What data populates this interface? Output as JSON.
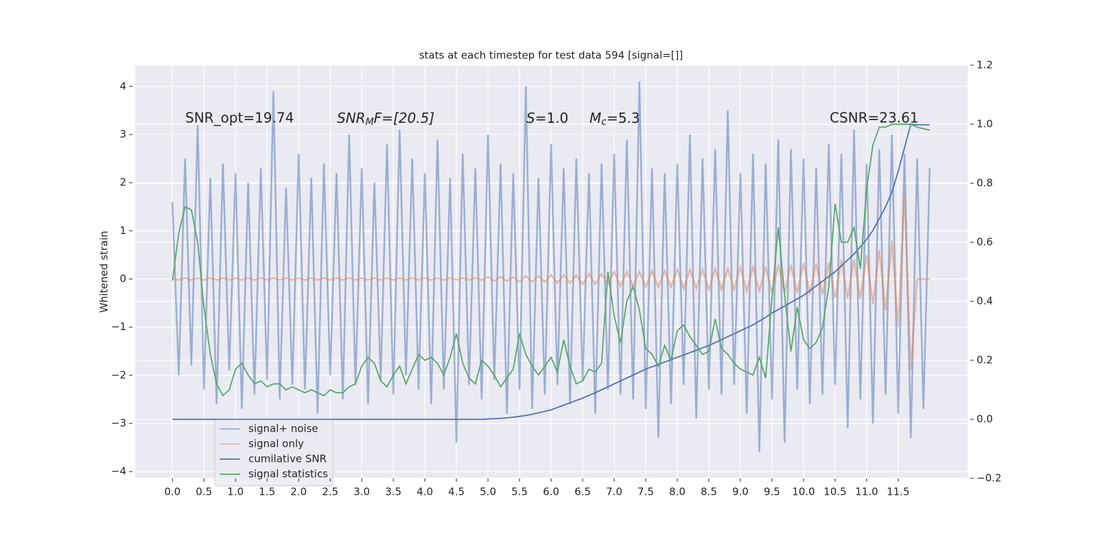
{
  "chart_data": {
    "type": "line",
    "title": "stats at each timestep for test data 594 [signal=[]]",
    "ylabel": "Whitened strain",
    "x": [
      0.0,
      0.1,
      0.2,
      0.3,
      0.4,
      0.5,
      0.6,
      0.7,
      0.8,
      0.9,
      1.0,
      1.1,
      1.2,
      1.3,
      1.4,
      1.5,
      1.6,
      1.7,
      1.8,
      1.9,
      2.0,
      2.1,
      2.2,
      2.3,
      2.4,
      2.5,
      2.6,
      2.7,
      2.8,
      2.9,
      3.0,
      3.1,
      3.2,
      3.3,
      3.4,
      3.5,
      3.6,
      3.7,
      3.8,
      3.9,
      4.0,
      4.1,
      4.2,
      4.3,
      4.4,
      4.5,
      4.6,
      4.7,
      4.8,
      4.9,
      5.0,
      5.1,
      5.2,
      5.3,
      5.4,
      5.5,
      5.6,
      5.7,
      5.8,
      5.9,
      6.0,
      6.1,
      6.2,
      6.3,
      6.4,
      6.5,
      6.6,
      6.7,
      6.8,
      6.9,
      7.0,
      7.1,
      7.2,
      7.3,
      7.4,
      7.5,
      7.6,
      7.7,
      7.8,
      7.9,
      8.0,
      8.1,
      8.2,
      8.3,
      8.4,
      8.5,
      8.6,
      8.7,
      8.8,
      8.9,
      9.0,
      9.1,
      9.2,
      9.3,
      9.4,
      9.5,
      9.6,
      9.7,
      9.8,
      9.9,
      10.0,
      10.1,
      10.2,
      10.3,
      10.4,
      10.5,
      10.6,
      10.7,
      10.8,
      10.9,
      11.0,
      11.1,
      11.2,
      11.3,
      11.4,
      11.5,
      11.6,
      11.7,
      11.8,
      11.9,
      12.0
    ],
    "xlim": [
      -0.59,
      12.6
    ],
    "xticks": [
      {
        "value": 0,
        "label": "0.0"
      },
      {
        "value": 0.5,
        "label": "0.5"
      },
      {
        "value": 1,
        "label": "1.0"
      },
      {
        "value": 1.5,
        "label": "1.5"
      },
      {
        "value": 2,
        "label": "2.0"
      },
      {
        "value": 2.5,
        "label": "2.5"
      },
      {
        "value": 3,
        "label": "3.0"
      },
      {
        "value": 3.5,
        "label": "3.5"
      },
      {
        "value": 4,
        "label": "4.0"
      },
      {
        "value": 4.5,
        "label": "4.5"
      },
      {
        "value": 5,
        "label": "5.0"
      },
      {
        "value": 5.5,
        "label": "5.5"
      },
      {
        "value": 6,
        "label": "6.0"
      },
      {
        "value": 6.5,
        "label": "6.5"
      },
      {
        "value": 7,
        "label": "7.0"
      },
      {
        "value": 7.5,
        "label": "7.5"
      },
      {
        "value": 8,
        "label": "8.0"
      },
      {
        "value": 8.5,
        "label": "8.5"
      },
      {
        "value": 9,
        "label": "9.0"
      },
      {
        "value": 9.5,
        "label": "9.5"
      },
      {
        "value": 10,
        "label": "10.0"
      },
      {
        "value": 10.5,
        "label": "10.5"
      },
      {
        "value": 11,
        "label": "11.0"
      },
      {
        "value": 11.5,
        "label": "11.5"
      }
    ],
    "ylim": [
      -4.14,
      4.44
    ],
    "yticks": [
      {
        "value": -4,
        "label": "−4"
      },
      {
        "value": -3,
        "label": "−3"
      },
      {
        "value": -2,
        "label": "−2"
      },
      {
        "value": -1,
        "label": "−1"
      },
      0,
      1,
      2,
      3,
      4
    ],
    "y2lim": [
      -0.2,
      1.2
    ],
    "y2ticks": [
      {
        "value": -0.2,
        "label": "−0.2"
      },
      {
        "value": 0,
        "label": "0.0"
      },
      0.2,
      0.4,
      0.6,
      0.8,
      {
        "value": 1,
        "label": "1.0"
      },
      1.2
    ],
    "grid": true,
    "legend": "lower left",
    "series": [
      {
        "name": "signal+ noise",
        "color": "#4c72b0",
        "alpha": 0.5,
        "values": [
          1.6,
          -2.0,
          2.5,
          -1.8,
          3.2,
          -2.3,
          2.1,
          -2.6,
          2.4,
          -1.9,
          2.2,
          -2.7,
          2.0,
          -2.4,
          2.3,
          -2.1,
          3.9,
          -2.5,
          1.9,
          -2.2,
          2.6,
          -2.3,
          2.1,
          -2.8,
          2.4,
          -2.0,
          2.2,
          -2.5,
          3.0,
          -2.2,
          2.3,
          -2.6,
          2.0,
          -2.1,
          2.8,
          -2.4,
          3.1,
          -2.0,
          2.5,
          -2.3,
          2.2,
          -2.6,
          2.9,
          -2.3,
          2.1,
          -3.4,
          2.6,
          -2.2,
          2.3,
          -2.5,
          3.0,
          -2.1,
          2.4,
          -2.8,
          2.2,
          -2.3,
          4.0,
          -2.7,
          2.1,
          -2.4,
          2.8,
          -2.2,
          2.3,
          -2.6,
          2.5,
          -2.1,
          2.2,
          -2.8,
          2.4,
          -2.3,
          2.6,
          -2.4,
          2.9,
          -2.5,
          4.1,
          -2.7,
          2.3,
          -3.3,
          2.2,
          -2.6,
          2.4,
          -2.2,
          3.0,
          -2.9,
          2.5,
          -2.3,
          2.7,
          -2.4,
          3.5,
          -2.2,
          2.2,
          -2.8,
          2.6,
          -3.6,
          2.4,
          -2.5,
          2.9,
          -3.4,
          2.7,
          -2.3,
          2.5,
          -2.6,
          2.3,
          -2.4,
          2.8,
          -2.2,
          2.6,
          -3.1,
          3.1,
          -2.5,
          2.4,
          -3.0,
          2.7,
          -2.4,
          3.0,
          -2.8,
          2.6,
          -3.3,
          2.5,
          -2.7,
          2.3
        ]
      },
      {
        "name": "signal only",
        "color": "#dd8452",
        "alpha": 0.5,
        "values": [
          0.02,
          -0.02,
          0.02,
          -0.02,
          0.02,
          -0.02,
          0.02,
          -0.02,
          0.02,
          -0.02,
          0.02,
          -0.02,
          0.02,
          -0.02,
          0.02,
          -0.02,
          0.02,
          -0.02,
          0.02,
          -0.02,
          0.02,
          -0.02,
          0.02,
          -0.02,
          0.02,
          -0.02,
          0.02,
          -0.02,
          0.02,
          -0.02,
          0.02,
          -0.02,
          0.02,
          -0.02,
          0.02,
          -0.02,
          0.02,
          -0.02,
          0.02,
          -0.02,
          0.02,
          -0.02,
          0.02,
          -0.02,
          0.02,
          -0.02,
          0.02,
          -0.02,
          0.02,
          -0.02,
          0.04,
          -0.04,
          0.04,
          -0.04,
          0.04,
          -0.06,
          0.06,
          -0.06,
          0.06,
          -0.06,
          0.08,
          -0.08,
          0.08,
          -0.08,
          0.08,
          -0.11,
          0.11,
          -0.11,
          0.11,
          -0.11,
          0.15,
          -0.15,
          0.15,
          -0.15,
          0.15,
          -0.17,
          0.17,
          -0.17,
          0.17,
          -0.17,
          0.2,
          -0.2,
          0.2,
          -0.2,
          0.2,
          -0.22,
          0.22,
          -0.22,
          0.22,
          -0.22,
          0.25,
          -0.25,
          0.25,
          -0.25,
          0.25,
          -0.29,
          0.29,
          -0.29,
          0.29,
          -0.29,
          0.33,
          -0.33,
          0.33,
          -0.33,
          0.33,
          -0.4,
          0.4,
          -0.4,
          0.4,
          -0.4,
          0.5,
          -0.53,
          0.6,
          -0.66,
          0.8,
          -1.0,
          1.75,
          -1.9,
          0.0,
          0.0,
          0.0
        ]
      },
      {
        "name": "cumilative SNR",
        "color": "#4c72b0",
        "axis": "y2",
        "values": [
          0,
          0,
          0,
          0,
          0,
          0,
          0,
          0,
          0,
          0,
          0,
          0,
          0,
          0,
          0,
          0,
          0,
          0,
          0,
          0,
          0,
          0,
          0,
          0,
          0,
          0,
          0,
          0,
          0,
          0,
          0,
          0,
          0,
          0,
          0,
          0,
          0,
          0,
          0,
          0,
          0,
          0,
          0,
          0,
          0,
          0,
          0,
          0,
          0,
          0,
          0.001,
          0.002,
          0.003,
          0.005,
          0.007,
          0.01,
          0.013,
          0.017,
          0.022,
          0.027,
          0.032,
          0.04,
          0.048,
          0.056,
          0.064,
          0.072,
          0.081,
          0.09,
          0.1,
          0.11,
          0.12,
          0.13,
          0.14,
          0.15,
          0.16,
          0.17,
          0.178,
          0.186,
          0.194,
          0.202,
          0.21,
          0.218,
          0.226,
          0.234,
          0.242,
          0.25,
          0.26,
          0.27,
          0.28,
          0.29,
          0.3,
          0.31,
          0.32,
          0.333,
          0.346,
          0.36,
          0.372,
          0.384,
          0.396,
          0.408,
          0.42,
          0.436,
          0.452,
          0.468,
          0.484,
          0.5,
          0.52,
          0.54,
          0.56,
          0.585,
          0.61,
          0.64,
          0.68,
          0.72,
          0.77,
          0.84,
          0.92,
          1.0,
          0.998,
          0.998,
          0.998
        ]
      },
      {
        "name": "signal statistics",
        "color": "#55a868",
        "axis": "y2",
        "values": [
          0.47,
          0.63,
          0.72,
          0.71,
          0.6,
          0.38,
          0.22,
          0.12,
          0.08,
          0.1,
          0.17,
          0.19,
          0.15,
          0.12,
          0.13,
          0.11,
          0.12,
          0.12,
          0.1,
          0.11,
          0.1,
          0.09,
          0.1,
          0.09,
          0.08,
          0.1,
          0.09,
          0.09,
          0.11,
          0.12,
          0.18,
          0.21,
          0.19,
          0.13,
          0.11,
          0.15,
          0.18,
          0.12,
          0.17,
          0.22,
          0.2,
          0.21,
          0.19,
          0.15,
          0.21,
          0.29,
          0.19,
          0.14,
          0.12,
          0.2,
          0.18,
          0.15,
          0.11,
          0.14,
          0.17,
          0.29,
          0.22,
          0.18,
          0.15,
          0.18,
          0.21,
          0.16,
          0.27,
          0.18,
          0.12,
          0.13,
          0.17,
          0.16,
          0.19,
          0.5,
          0.35,
          0.26,
          0.4,
          0.45,
          0.37,
          0.24,
          0.22,
          0.18,
          0.25,
          0.2,
          0.3,
          0.32,
          0.28,
          0.25,
          0.22,
          0.23,
          0.34,
          0.24,
          0.22,
          0.19,
          0.17,
          0.16,
          0.15,
          0.21,
          0.14,
          0.41,
          0.65,
          0.42,
          0.23,
          0.38,
          0.27,
          0.24,
          0.26,
          0.31,
          0.45,
          0.73,
          0.6,
          0.6,
          0.65,
          0.51,
          0.78,
          0.93,
          0.99,
          0.99,
          1.0,
          1.0,
          1.0,
          1.0,
          0.99,
          0.985,
          0.98
        ]
      }
    ],
    "annotations": [
      {
        "text": "SNR_opt=19.74"
      },
      {
        "main": "SNR",
        "sub": "M",
        "rest": "F=[20.5]"
      },
      {
        "main": "S",
        "rest": "=1.0"
      },
      {
        "main": "M",
        "sub": "c",
        "rest": "=5.3"
      },
      {
        "text": "CSNR=23.61"
      }
    ]
  }
}
